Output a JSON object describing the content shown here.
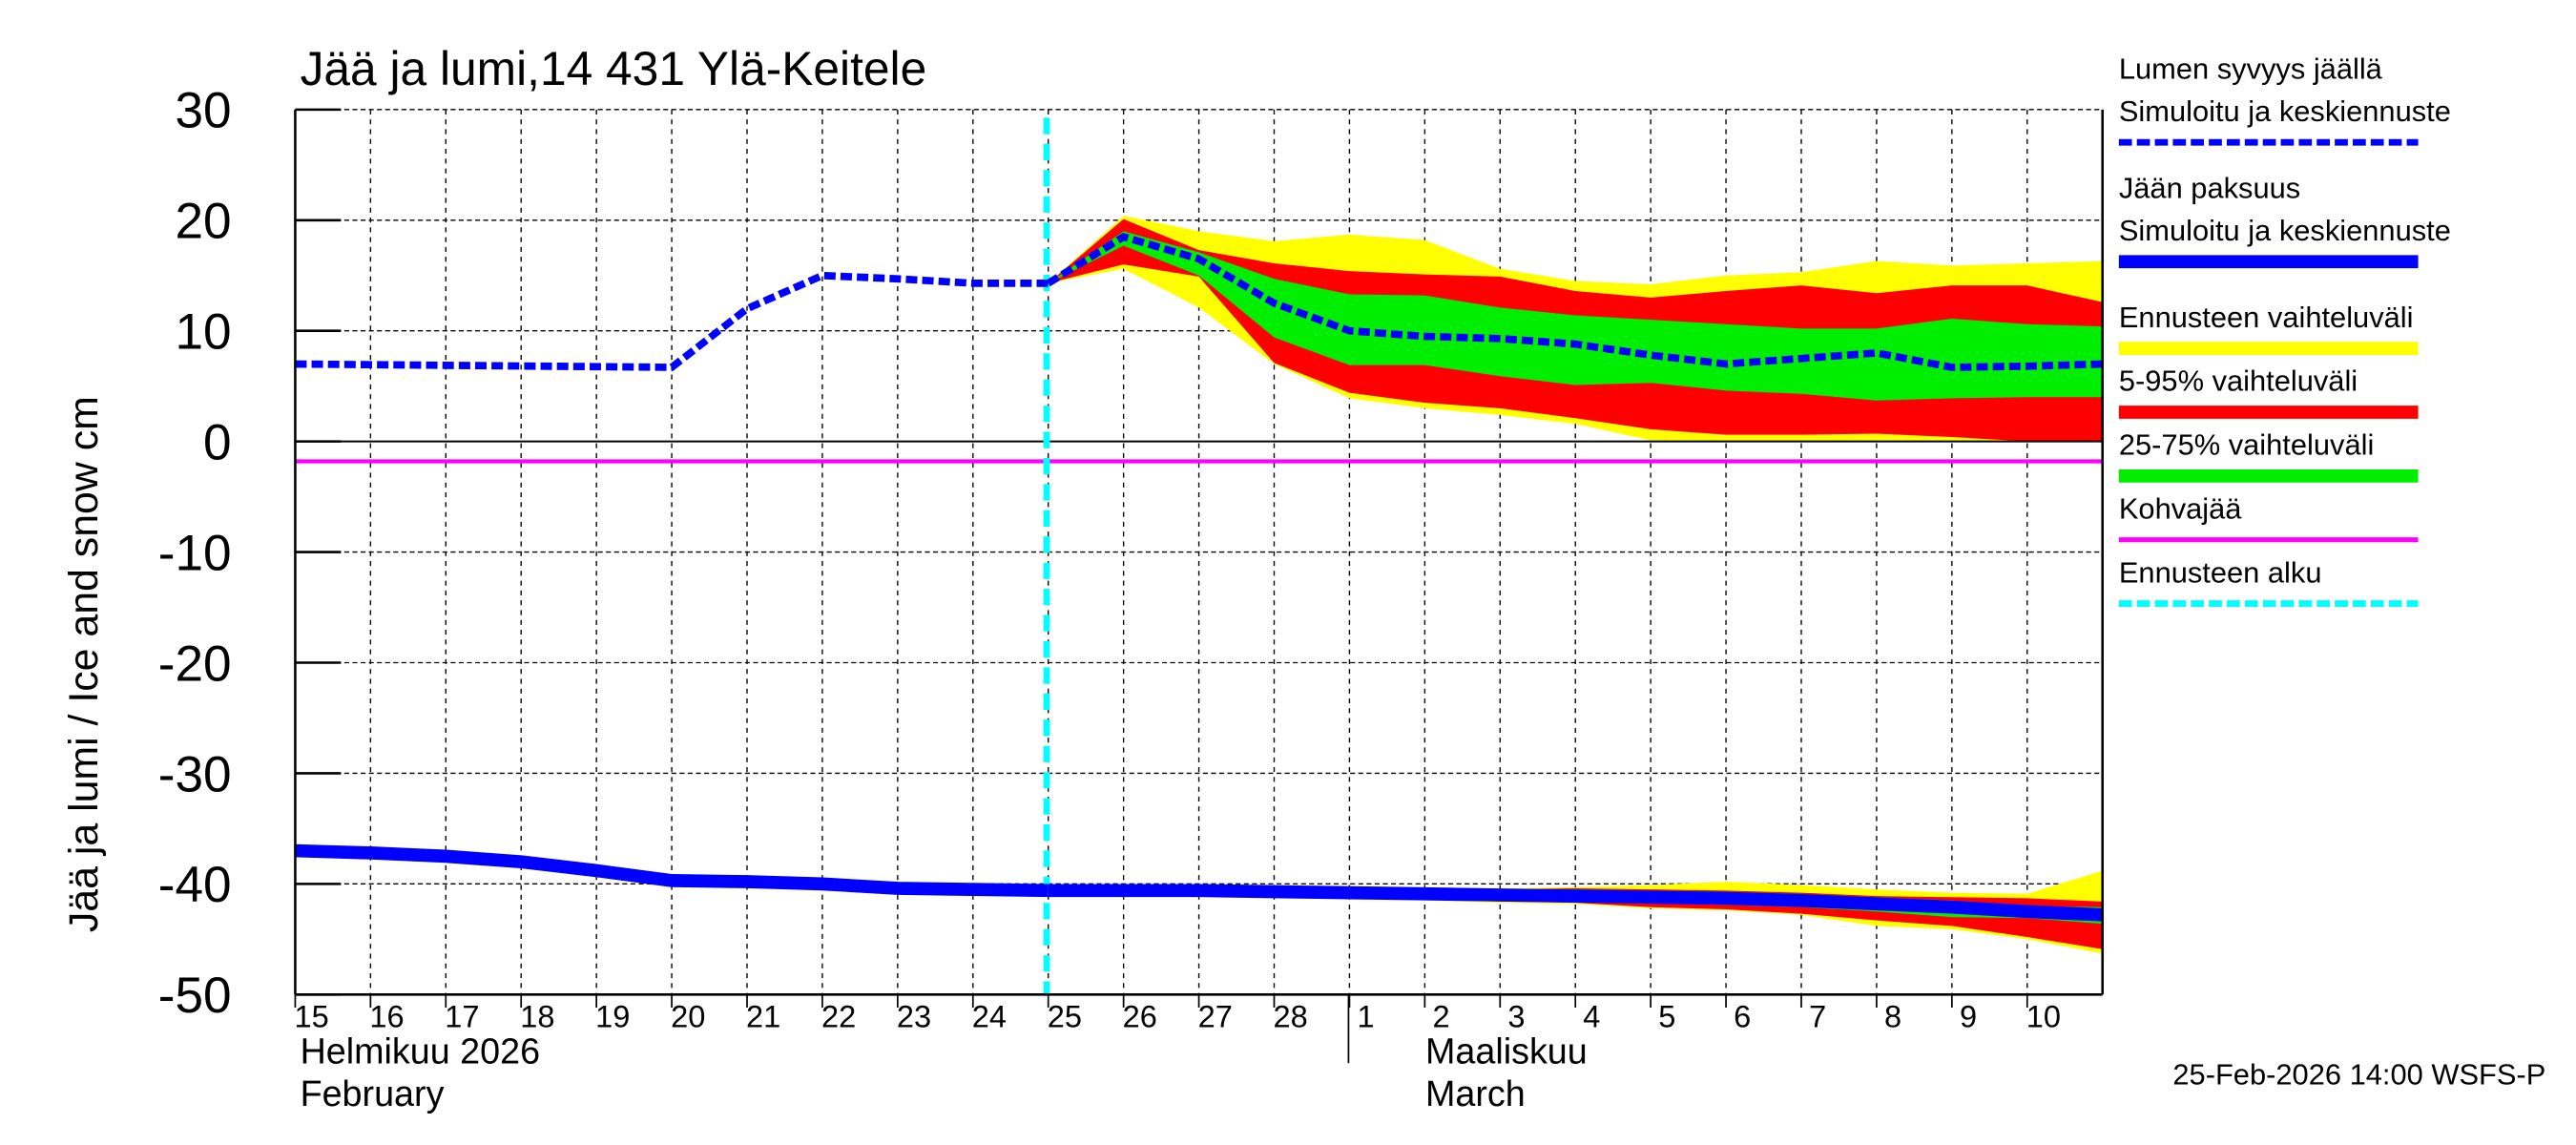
{
  "chart_data": {
    "type": "area",
    "title": "Jää ja lumi,14 431 Ylä-Keitele",
    "ylabel": "Jää ja lumi / Ice and snow    cm",
    "ylim": [
      -50,
      30
    ],
    "yticks": [
      30,
      20,
      10,
      0,
      -10,
      -20,
      -30,
      -40,
      -50
    ],
    "xlim": [
      "2026-02-15",
      "2026-03-11"
    ],
    "grid": true,
    "legend_position": "right",
    "xtick_labels": [
      "15",
      "16",
      "17",
      "18",
      "19",
      "20",
      "21",
      "22",
      "23",
      "24",
      "25",
      "26",
      "27",
      "28",
      "1",
      "2",
      "3",
      "4",
      "5",
      "6",
      "7",
      "8",
      "9",
      "10"
    ],
    "month_labels": [
      {
        "fi": "Helmikuu  2026",
        "en": "February"
      },
      {
        "fi": "Maaliskuu",
        "en": "March"
      }
    ],
    "forecast_start": "2026-02-25",
    "kohvajaa_value": -1.8,
    "colors": {
      "mean": "#0000ff",
      "outer": "#ffff00",
      "p5_95": "#ff0000",
      "p25_75": "#00ee00",
      "kohvajaa": "#ff00ff",
      "forecast_start": "#00ffff"
    },
    "snow": {
      "history_x": [
        "2026-02-15",
        "2026-02-20",
        "2026-02-21",
        "2026-02-22",
        "2026-02-23",
        "2026-02-24",
        "2026-02-25"
      ],
      "history_y": [
        7.0,
        6.7,
        12.0,
        15.0,
        14.7,
        14.3,
        14.3
      ],
      "forecast_x": [
        "2026-02-25",
        "2026-02-26",
        "2026-02-27",
        "2026-02-28",
        "2026-03-01",
        "2026-03-02",
        "2026-03-03",
        "2026-03-04",
        "2026-03-05",
        "2026-03-06",
        "2026-03-07",
        "2026-03-08",
        "2026-03-09",
        "2026-03-10",
        "2026-03-11"
      ],
      "mean": [
        14.3,
        18.5,
        16.5,
        12.5,
        10,
        9.5,
        9.3,
        8.8,
        7.8,
        7,
        7.5,
        8,
        6.7,
        6.8,
        7
      ],
      "outer_top": [
        14.3,
        20.4,
        19,
        18.1,
        18.7,
        18.2,
        15.6,
        14.5,
        14.2,
        15,
        15.3,
        16.3,
        15.9,
        16.1,
        16.3
      ],
      "p95": [
        14.3,
        20.1,
        17.3,
        16.1,
        15.4,
        15.1,
        14.9,
        13.6,
        13,
        13.6,
        14.1,
        13.4,
        14.1,
        14.1,
        12.6
      ],
      "p75": [
        14.3,
        19,
        17.1,
        14.7,
        13.3,
        13.2,
        12.1,
        11.4,
        11,
        10.6,
        10.2,
        10.2,
        11.1,
        10.6,
        10.4
      ],
      "p25": [
        14.3,
        17.7,
        15,
        9.4,
        6.9,
        6.9,
        5.9,
        5.1,
        5.3,
        4.6,
        4.3,
        3.7,
        3.9,
        4,
        4
      ],
      "p5": [
        14.3,
        16,
        14.9,
        7.1,
        4.4,
        3.5,
        3,
        2.1,
        1.1,
        0.6,
        0.6,
        0.7,
        0.4,
        0,
        0
      ],
      "outer_bottom": [
        14.3,
        15.6,
        12.1,
        7,
        3.9,
        3,
        2.4,
        1.6,
        0.1,
        0,
        0,
        0.1,
        0.1,
        0,
        0
      ]
    },
    "ice": {
      "history_x": [
        "2026-02-15",
        "2026-02-16",
        "2026-02-17",
        "2026-02-18",
        "2026-02-19",
        "2026-02-20",
        "2026-02-21",
        "2026-02-22",
        "2026-02-23",
        "2026-02-24",
        "2026-02-25"
      ],
      "history_y": [
        -37,
        -37.2,
        -37.5,
        -38,
        -38.8,
        -39.7,
        -39.8,
        -40,
        -40.4,
        -40.5,
        -40.6
      ],
      "forecast_x": [
        "2026-02-25",
        "2026-02-26",
        "2026-02-27",
        "2026-02-28",
        "2026-03-01",
        "2026-03-02",
        "2026-03-03",
        "2026-03-04",
        "2026-03-05",
        "2026-03-06",
        "2026-03-07",
        "2026-03-08",
        "2026-03-09",
        "2026-03-10",
        "2026-03-11"
      ],
      "mean": [
        -40.6,
        -40.6,
        -40.6,
        -40.7,
        -40.8,
        -40.9,
        -41,
        -41.1,
        -41.2,
        -41.3,
        -41.5,
        -41.8,
        -42.1,
        -42.5,
        -42.8
      ],
      "outer_top": [
        -40.6,
        -40.5,
        -40.4,
        -40.4,
        -40.4,
        -40.4,
        -40.4,
        -40.3,
        -40.1,
        -39.8,
        -40.1,
        -40.5,
        -40.8,
        -40.9,
        -38.8
      ],
      "p95": [
        -40.6,
        -40.6,
        -40.5,
        -40.5,
        -40.5,
        -40.5,
        -40.5,
        -40.4,
        -40.5,
        -40.6,
        -40.8,
        -41.1,
        -41.2,
        -41.3,
        -41.6
      ],
      "p75": [
        -40.6,
        -40.6,
        -40.6,
        -40.6,
        -40.6,
        -40.6,
        -40.6,
        -40.5,
        -40.6,
        -40.7,
        -40.9,
        -41.2,
        -41.5,
        -42,
        -42.1
      ],
      "p25": [
        -40.6,
        -40.6,
        -40.7,
        -40.8,
        -40.9,
        -41.1,
        -41.3,
        -41.6,
        -41.7,
        -41.9,
        -42.1,
        -42.5,
        -43,
        -43.1,
        -43.6
      ],
      "p5": [
        -40.6,
        -40.7,
        -40.8,
        -41,
        -41.2,
        -41.4,
        -41.6,
        -41.7,
        -42.1,
        -42.3,
        -42.7,
        -43.3,
        -43.8,
        -44.8,
        -45.9
      ],
      "outer_bottom": [
        -40.6,
        -40.8,
        -40.9,
        -41.1,
        -41.3,
        -41.5,
        -41.7,
        -41.8,
        -42.2,
        -42.4,
        -42.8,
        -43.8,
        -44.1,
        -45,
        -46.3
      ]
    },
    "legend": [
      {
        "label1": "Lumen syvyys jäällä",
        "label2": "Simuloitu ja keskiennuste",
        "color": "#0000ff",
        "style": "dashed"
      },
      {
        "label1": "Jään paksuus",
        "label2": "Simuloitu ja keskiennuste",
        "color": "#0000ff",
        "style": "thick"
      },
      {
        "label1": "Ennusteen vaihteluväli",
        "color": "#ffff00",
        "style": "solid"
      },
      {
        "label1": "5-95% vaihteluväli",
        "color": "#ff0000",
        "style": "solid"
      },
      {
        "label1": "25-75% vaihteluväli",
        "color": "#00ee00",
        "style": "solid"
      },
      {
        "label1": "Kohvajää",
        "color": "#ff00ff",
        "style": "thin"
      },
      {
        "label1": "Ennusteen alku",
        "color": "#00ffff",
        "style": "dashed"
      }
    ],
    "footer": "25-Feb-2026 14:00 WSFS-P"
  }
}
